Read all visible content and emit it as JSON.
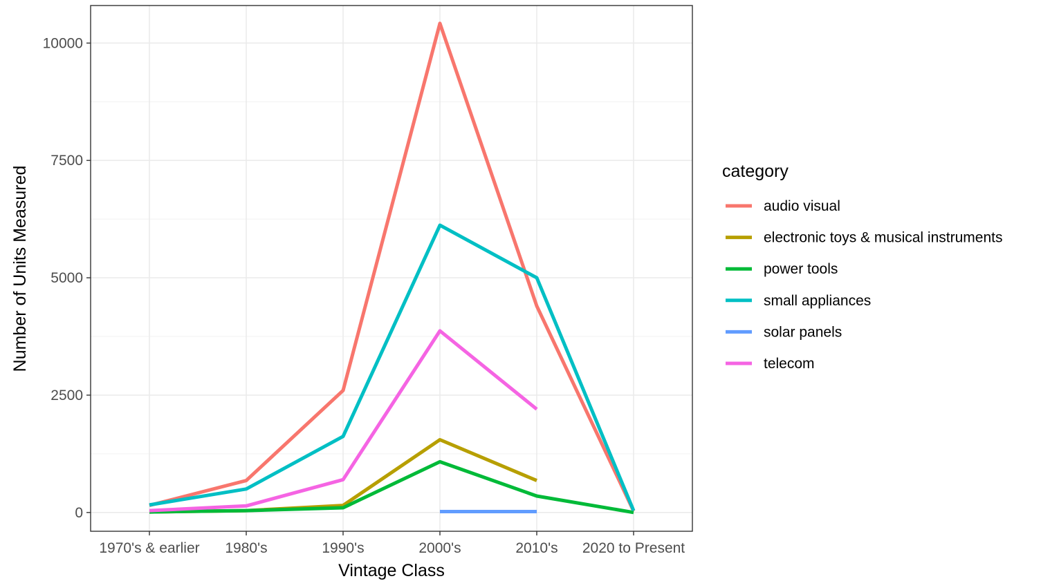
{
  "chart_data": {
    "type": "line",
    "xlabel": "Vintage Class",
    "ylabel": "Number of Units Measured",
    "categories": [
      "1970's & earlier",
      "1980's",
      "1990's",
      "2000's",
      "2010's",
      "2020 to Present"
    ],
    "ylim": [
      -400,
      10800
    ],
    "yticks": [
      0,
      2500,
      5000,
      7500,
      10000
    ],
    "ytick_labels": [
      "0",
      "2500",
      "5000",
      "7500",
      "10000"
    ],
    "grid": true,
    "legend_position": "right",
    "legend_title": "category",
    "series": [
      {
        "name": "audio visual",
        "color": "#F8766D",
        "values": [
          150,
          680,
          2600,
          10420,
          4400,
          30
        ]
      },
      {
        "name": "electronic toys & musical instruments",
        "color": "#B79F00",
        "values": [
          10,
          40,
          150,
          1550,
          680,
          null
        ]
      },
      {
        "name": "power tools",
        "color": "#00BA38",
        "values": [
          10,
          40,
          100,
          1080,
          350,
          0
        ]
      },
      {
        "name": "small appliances",
        "color": "#00BFC4",
        "values": [
          160,
          500,
          1620,
          6120,
          5000,
          40
        ]
      },
      {
        "name": "solar panels",
        "color": "#619CFF",
        "values": [
          null,
          null,
          null,
          20,
          20,
          null
        ]
      },
      {
        "name": "telecom",
        "color": "#F564E3",
        "values": [
          40,
          140,
          700,
          3870,
          2200,
          null
        ]
      }
    ]
  }
}
